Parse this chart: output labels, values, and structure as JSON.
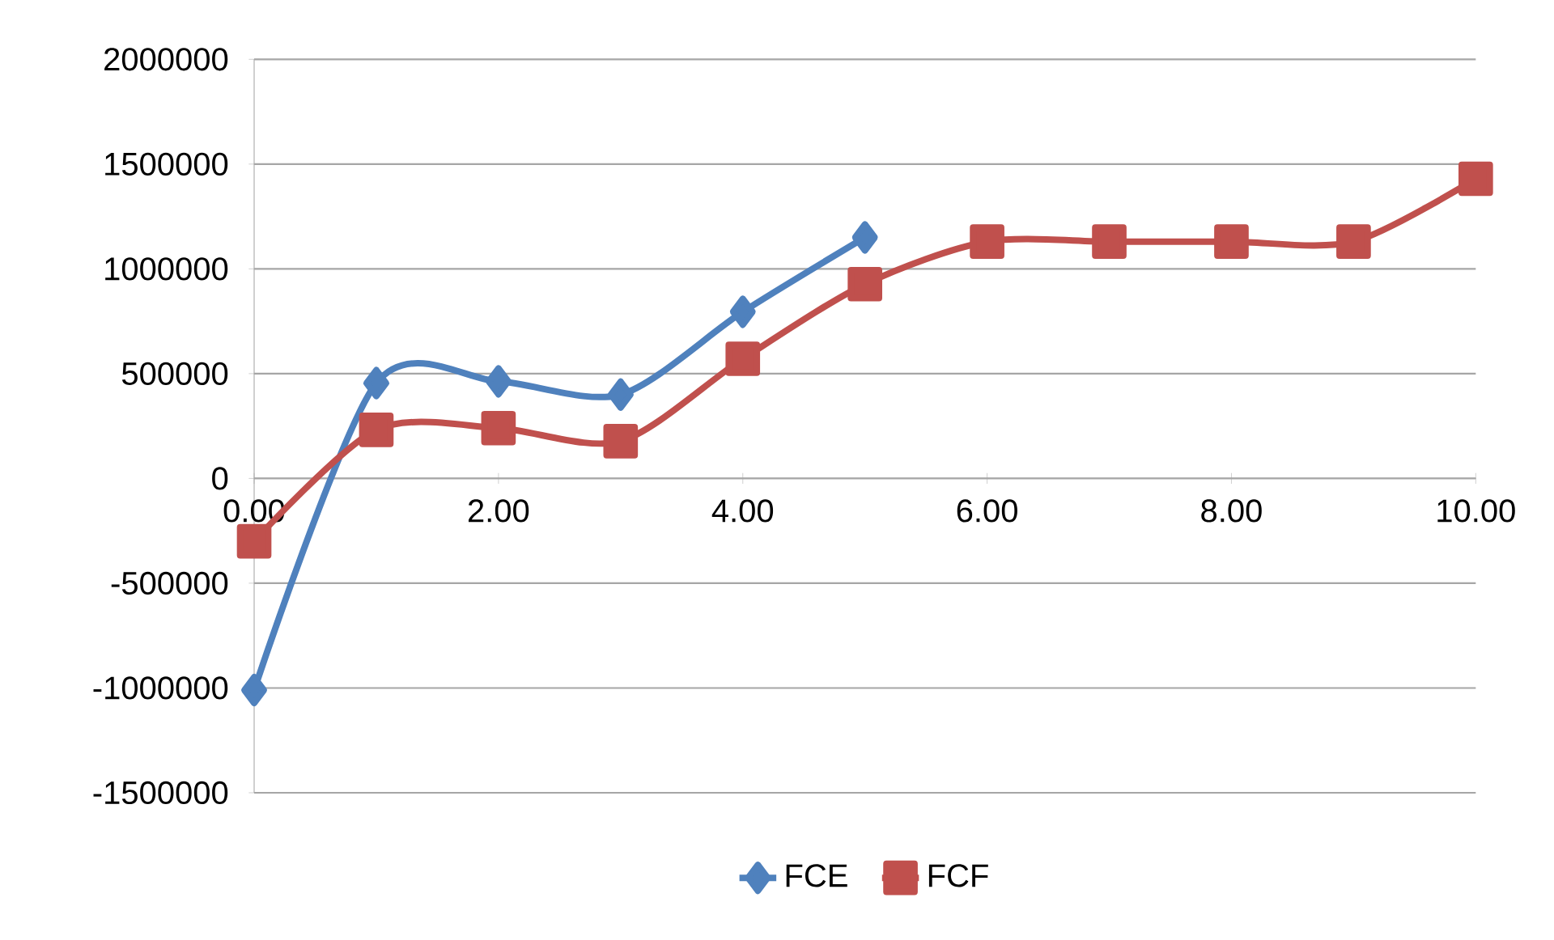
{
  "chart_data": {
    "type": "line",
    "x": [
      0,
      1,
      2,
      3,
      4,
      5,
      6,
      7,
      8,
      9,
      10
    ],
    "series": [
      {
        "name": "FCE",
        "color": "#4f81bd",
        "marker": "diamond",
        "values": [
          -1010000,
          455000,
          463000,
          400000,
          795000,
          1150000,
          null,
          null,
          null,
          null,
          null
        ]
      },
      {
        "name": "FCF",
        "color": "#c0504d",
        "marker": "square",
        "values": [
          -300000,
          232000,
          240000,
          178000,
          571000,
          927000,
          1130000,
          1130000,
          1130000,
          1130000,
          1430000
        ]
      }
    ],
    "xlim": [
      0,
      10
    ],
    "xticks": [
      {
        "value": 0,
        "label": "0.00"
      },
      {
        "value": 2,
        "label": "2.00"
      },
      {
        "value": 4,
        "label": "4.00"
      },
      {
        "value": 6,
        "label": "6.00"
      },
      {
        "value": 8,
        "label": "8.00"
      },
      {
        "value": 10,
        "label": "10.00"
      }
    ],
    "ylim": [
      -1500000,
      2000000
    ],
    "yticks": [
      -1500000,
      -1000000,
      -500000,
      0,
      500000,
      1000000,
      1500000,
      2000000
    ],
    "grid": "y",
    "legend": "bottom",
    "line_style": "solid"
  }
}
